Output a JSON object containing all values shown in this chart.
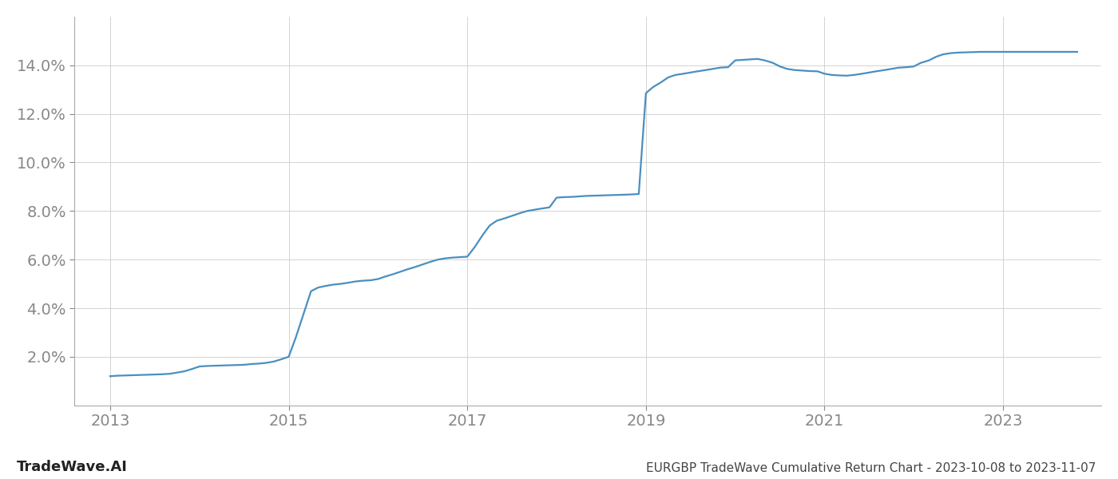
{
  "title": "EURGBP TradeWave Cumulative Return Chart - 2023-10-08 to 2023-11-07",
  "watermark": "TradeWave.AI",
  "line_color": "#4a8fc0",
  "background_color": "#ffffff",
  "grid_color": "#cccccc",
  "x_values": [
    2013.0,
    2013.08,
    2013.17,
    2013.25,
    2013.33,
    2013.42,
    2013.5,
    2013.58,
    2013.67,
    2013.75,
    2013.83,
    2013.92,
    2014.0,
    2014.08,
    2014.17,
    2014.25,
    2014.33,
    2014.42,
    2014.5,
    2014.58,
    2014.67,
    2014.75,
    2014.83,
    2014.92,
    2015.0,
    2015.08,
    2015.17,
    2015.25,
    2015.33,
    2015.42,
    2015.5,
    2015.58,
    2015.67,
    2015.75,
    2015.83,
    2015.92,
    2016.0,
    2016.08,
    2016.17,
    2016.25,
    2016.33,
    2016.42,
    2016.5,
    2016.58,
    2016.67,
    2016.75,
    2016.83,
    2016.92,
    2017.0,
    2017.08,
    2017.17,
    2017.25,
    2017.33,
    2017.42,
    2017.5,
    2017.58,
    2017.67,
    2017.75,
    2017.83,
    2017.92,
    2018.0,
    2018.08,
    2018.17,
    2018.25,
    2018.33,
    2018.42,
    2018.5,
    2018.58,
    2018.67,
    2018.75,
    2018.83,
    2018.92,
    2019.0,
    2019.08,
    2019.17,
    2019.25,
    2019.33,
    2019.42,
    2019.5,
    2019.58,
    2019.67,
    2019.75,
    2019.83,
    2019.92,
    2020.0,
    2020.08,
    2020.17,
    2020.25,
    2020.33,
    2020.42,
    2020.5,
    2020.58,
    2020.67,
    2020.75,
    2020.83,
    2020.92,
    2021.0,
    2021.08,
    2021.17,
    2021.25,
    2021.33,
    2021.42,
    2021.5,
    2021.58,
    2021.67,
    2021.75,
    2021.83,
    2021.92,
    2022.0,
    2022.08,
    2022.17,
    2022.25,
    2022.33,
    2022.42,
    2022.5,
    2022.58,
    2022.67,
    2022.75,
    2022.83,
    2022.92,
    2023.0,
    2023.08,
    2023.17,
    2023.25,
    2023.33,
    2023.42,
    2023.5,
    2023.58,
    2023.67,
    2023.75,
    2023.83
  ],
  "y_values": [
    1.2,
    1.22,
    1.23,
    1.24,
    1.25,
    1.26,
    1.27,
    1.28,
    1.3,
    1.35,
    1.4,
    1.5,
    1.6,
    1.62,
    1.63,
    1.64,
    1.65,
    1.66,
    1.67,
    1.7,
    1.72,
    1.75,
    1.8,
    1.9,
    2.0,
    2.8,
    3.8,
    4.7,
    4.85,
    4.92,
    4.97,
    5.0,
    5.05,
    5.1,
    5.13,
    5.15,
    5.2,
    5.3,
    5.4,
    5.5,
    5.6,
    5.7,
    5.8,
    5.9,
    6.0,
    6.05,
    6.08,
    6.1,
    6.12,
    6.5,
    7.0,
    7.4,
    7.6,
    7.7,
    7.8,
    7.9,
    8.0,
    8.05,
    8.1,
    8.15,
    8.55,
    8.57,
    8.58,
    8.6,
    8.62,
    8.63,
    8.64,
    8.65,
    8.66,
    8.67,
    8.68,
    8.7,
    12.85,
    13.1,
    13.3,
    13.5,
    13.6,
    13.65,
    13.7,
    13.75,
    13.8,
    13.85,
    13.9,
    13.92,
    14.2,
    14.22,
    14.24,
    14.26,
    14.2,
    14.1,
    13.95,
    13.85,
    13.8,
    13.78,
    13.76,
    13.75,
    13.65,
    13.6,
    13.58,
    13.57,
    13.6,
    13.65,
    13.7,
    13.75,
    13.8,
    13.85,
    13.9,
    13.92,
    13.95,
    14.1,
    14.2,
    14.35,
    14.45,
    14.5,
    14.52,
    14.53,
    14.54,
    14.55,
    14.55,
    14.55,
    14.55,
    14.55,
    14.55,
    14.55,
    14.55,
    14.55,
    14.55,
    14.55,
    14.55,
    14.55,
    14.55
  ],
  "xlim": [
    2012.6,
    2024.1
  ],
  "ylim": [
    0.0,
    16.0
  ],
  "yticks": [
    2.0,
    4.0,
    6.0,
    8.0,
    10.0,
    12.0,
    14.0
  ],
  "xticks": [
    2013,
    2015,
    2017,
    2019,
    2021,
    2023
  ],
  "tick_label_color": "#888888",
  "spine_color": "#aaaaaa",
  "line_width": 1.6,
  "title_fontsize": 11,
  "tick_fontsize": 14,
  "watermark_fontsize": 13
}
